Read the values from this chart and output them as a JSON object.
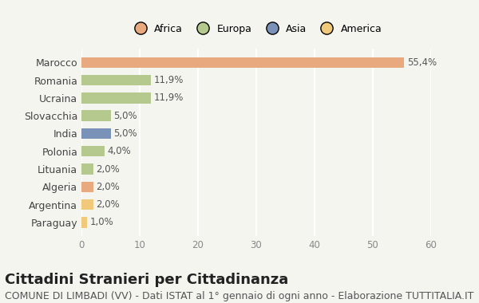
{
  "countries": [
    "Marocco",
    "Romania",
    "Ucraina",
    "Slovacchia",
    "India",
    "Polonia",
    "Lituania",
    "Algeria",
    "Argentina",
    "Paraguay"
  ],
  "values": [
    55.4,
    11.9,
    11.9,
    5.0,
    5.0,
    4.0,
    2.0,
    2.0,
    2.0,
    1.0
  ],
  "labels": [
    "55,4%",
    "11,9%",
    "11,9%",
    "5,0%",
    "5,0%",
    "4,0%",
    "2,0%",
    "2,0%",
    "2,0%",
    "1,0%"
  ],
  "colors": [
    "#E8A97E",
    "#B5C98E",
    "#B5C98E",
    "#B5C98E",
    "#7B92B8",
    "#B5C98E",
    "#B5C98E",
    "#E8A97E",
    "#F0C97A",
    "#F0C97A"
  ],
  "continent_colors": {
    "Africa": "#E8A97E",
    "Europa": "#B5C98E",
    "Asia": "#7B92B8",
    "America": "#F0C97A"
  },
  "legend_labels": [
    "Africa",
    "Europa",
    "Asia",
    "America"
  ],
  "xlim": [
    0,
    60
  ],
  "xticks": [
    0,
    10,
    20,
    30,
    40,
    50,
    60
  ],
  "title": "Cittadini Stranieri per Cittadinanza",
  "subtitle": "COMUNE DI LIMBADI (VV) - Dati ISTAT al 1° gennaio di ogni anno - Elaborazione TUTTITALIA.IT",
  "background_color": "#f5f5f0",
  "grid_color": "#ffffff",
  "title_fontsize": 13,
  "subtitle_fontsize": 9,
  "bar_height": 0.6
}
